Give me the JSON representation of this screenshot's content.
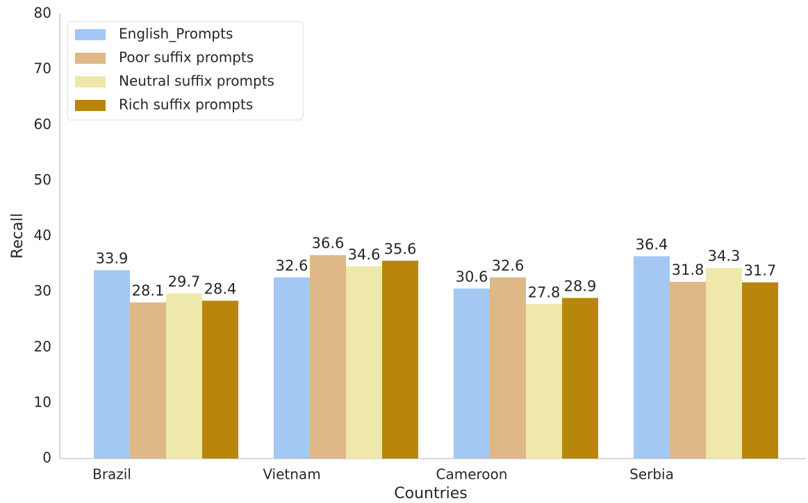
{
  "chart_data": {
    "type": "bar",
    "x_label": "Countries",
    "y_label": "Recall",
    "categories": [
      "Brazil",
      "Vietnam",
      "Cameroon",
      "Serbia"
    ],
    "series": [
      {
        "name": "English_Prompts",
        "color": "#a4c8f4",
        "values": [
          33.9,
          32.6,
          30.6,
          36.4
        ]
      },
      {
        "name": "Poor suffix prompts",
        "color": "#deb887",
        "values": [
          28.1,
          36.6,
          32.6,
          31.8
        ]
      },
      {
        "name": "Neutral suffix prompts",
        "color": "#eee8aa",
        "values": [
          29.7,
          34.6,
          27.8,
          34.3
        ]
      },
      {
        "name": "Rich suffix prompts",
        "color": "#b8860b",
        "values": [
          28.4,
          35.6,
          28.9,
          31.7
        ]
      }
    ],
    "ylim": [
      0,
      80
    ],
    "yticks": [
      0,
      10,
      20,
      30,
      40,
      50,
      60,
      70,
      80
    ],
    "grid": false,
    "legend": "upper left"
  }
}
